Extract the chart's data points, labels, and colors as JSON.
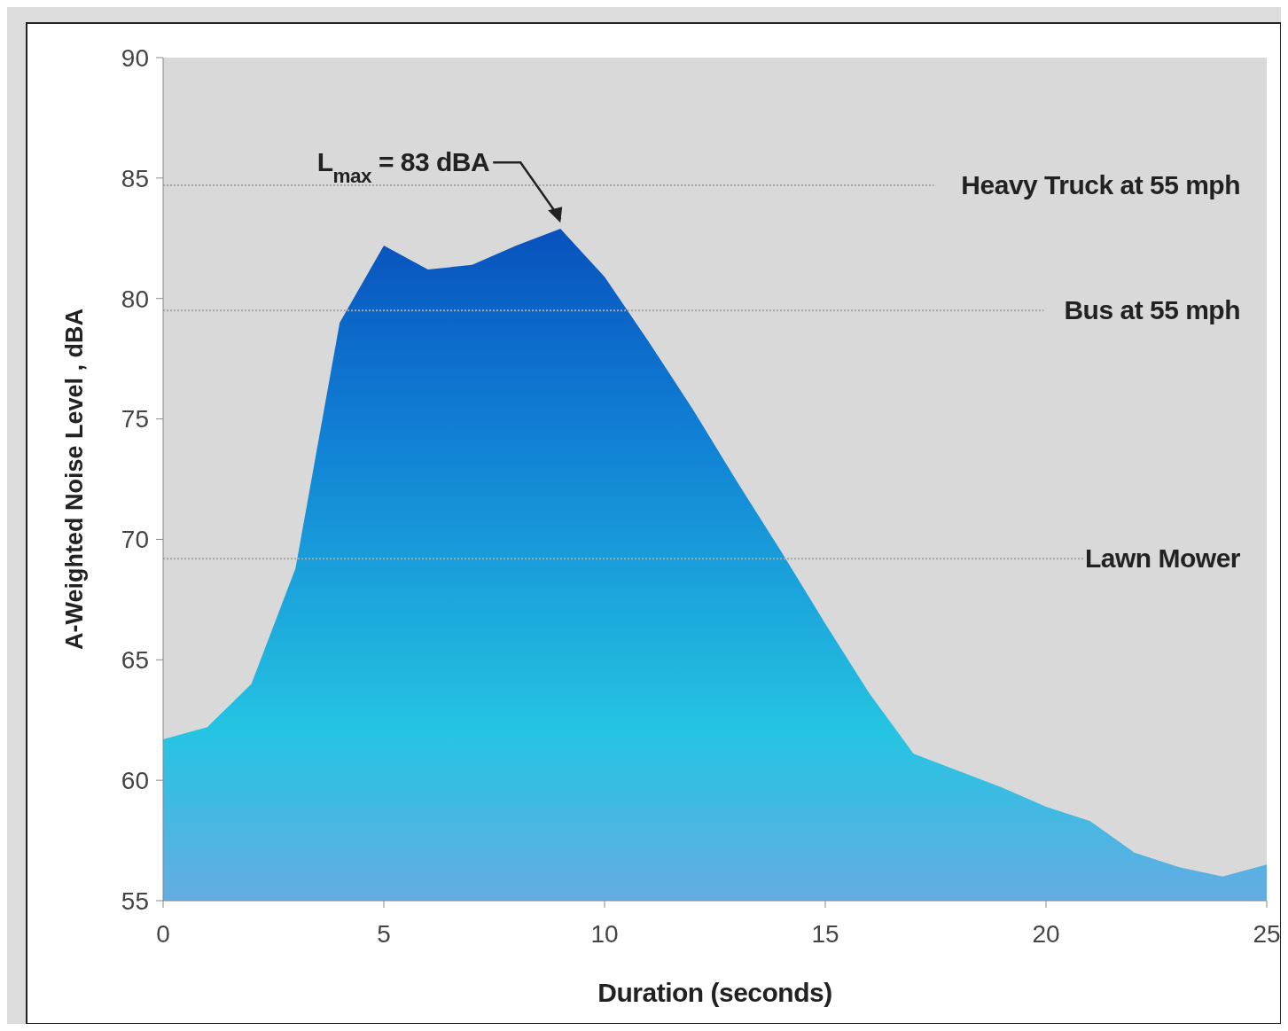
{
  "chart_data": {
    "type": "area",
    "xlabel": "Duration (seconds)",
    "ylabel": "A-Weighted Noise Level , dBA",
    "x": [
      0,
      1,
      2,
      3,
      4,
      5,
      6,
      7,
      8,
      9,
      10,
      11,
      12,
      13,
      14,
      15,
      16,
      17,
      18,
      19,
      20,
      21,
      22,
      23,
      24,
      25
    ],
    "series": [
      {
        "color": "#1a9fdc",
        "values": [
          61.7,
          62.2,
          64.0,
          68.8,
          79.0,
          82.2,
          81.2,
          81.4,
          82.2,
          82.9,
          80.9,
          78.2,
          75.4,
          72.4,
          69.5,
          66.5,
          63.6,
          61.1,
          60.4,
          59.7,
          58.9,
          58.3,
          57.0,
          56.4,
          56.0,
          56.5
        ]
      }
    ],
    "xlim": [
      0,
      25
    ],
    "xticks": [
      0,
      5,
      10,
      15,
      20,
      25
    ],
    "ylim": [
      55,
      90
    ],
    "yticks": [
      55,
      60,
      65,
      70,
      75,
      80,
      85,
      90
    ],
    "ref_lines": [
      {
        "axis": "y",
        "value": 84.7,
        "label": "Heavy Truck at 55 mph",
        "color": "#a6a6a6",
        "line_style": "dotted"
      },
      {
        "axis": "y",
        "value": 79.5,
        "label": "Bus at 55 mph",
        "color": "#a6a6a6",
        "line_style": "dotted"
      },
      {
        "axis": "y",
        "value": 69.2,
        "label": "Lawn Mower",
        "color": "#a6a6a6",
        "line_style": "dotted"
      }
    ],
    "annotations": [
      {
        "text": "L$_{max}$ = 83 dBA",
        "x": 9,
        "y": 83
      }
    ],
    "grid": false,
    "marker": "none"
  }
}
